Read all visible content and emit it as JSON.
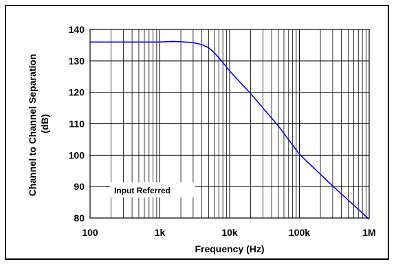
{
  "chart_data": {
    "type": "line",
    "x_scale": "log",
    "grid": true,
    "xlabel": "Frequency (Hz)",
    "ylabel_line1": "Channel to Channel Separation",
    "ylabel_line2": "(dB)",
    "xlim": [
      100,
      1000000
    ],
    "ylim": [
      80,
      140
    ],
    "x_ticks": [
      100,
      1000,
      10000,
      100000,
      1000000
    ],
    "x_tick_labels": [
      "100",
      "1k",
      "10k",
      "100k",
      "1M"
    ],
    "y_ticks": [
      80,
      90,
      100,
      110,
      120,
      130,
      140
    ],
    "y_tick_labels": [
      "80",
      "90",
      "100",
      "110",
      "120",
      "130",
      "140"
    ],
    "annotation": "Input Referred",
    "line_color": "#0000ff",
    "series": [
      {
        "x": [
          100,
          1000,
          1500,
          2000,
          3000,
          4000,
          5000,
          6000,
          7000,
          8000,
          10000,
          20000,
          50000,
          100000,
          300000,
          1000000
        ],
        "y": [
          136,
          136,
          136.2,
          136.1,
          135.8,
          135.2,
          134.2,
          132.7,
          131,
          129.5,
          126.8,
          119.6,
          109.3,
          100.3,
          90.2,
          79.6
        ]
      }
    ]
  }
}
